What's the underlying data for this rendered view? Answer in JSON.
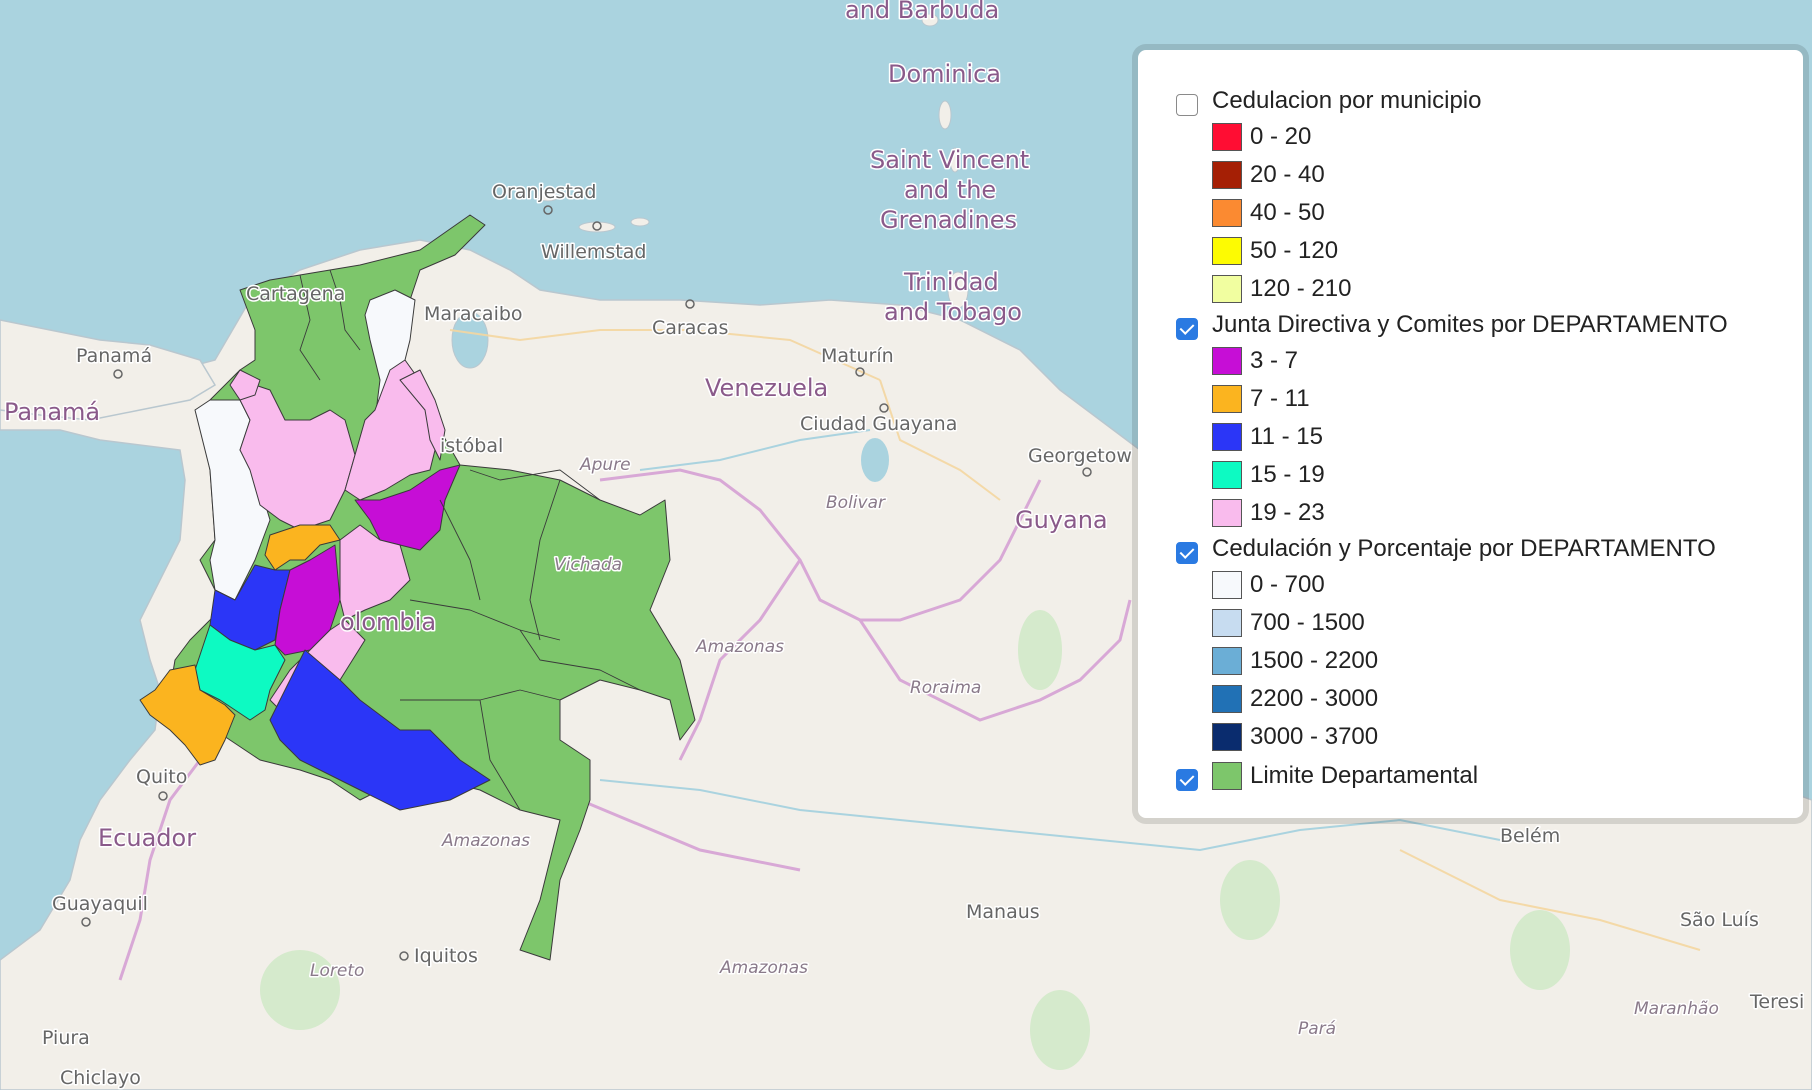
{
  "map": {
    "labels": {
      "antigua": "and Barbuda",
      "dominica": "Dominica",
      "saint_vincent": [
        "Saint Vincent",
        "and the",
        "Grenadines"
      ],
      "trinidad": [
        "Trinidad",
        "and Tobago"
      ],
      "oranjestad": "Oranjestad",
      "willemstad": "Willemstad",
      "cartagena": "Cartagena",
      "maracaibo": "Maracaibo",
      "caracas": "Caracas",
      "maturin": "Maturín",
      "venezuela": "Venezuela",
      "ciudad_guayana": "Ciudad Guayana",
      "san_cristobal": "istóbal",
      "apure": "Apure",
      "bolivar": "Bolivar",
      "guyana": "Guyana",
      "georgetown": "Georgetow",
      "panama_city": "Panamá",
      "panama_country": "Panamá",
      "vichada": "Vichada",
      "colombia": "olombia",
      "amazonas_ve": "Amazonas",
      "roraima": "Roraima",
      "quito": "Quito",
      "ecuador": "Ecuador",
      "guayaquil": "Guayaquil",
      "amazonas_co": "Amazonas",
      "belem": "Belém",
      "manaus": "Manaus",
      "sao_luis": "São Luís",
      "loreto": "Loreto",
      "iquitos": "Iquitos",
      "amazonas_br": "Amazonas",
      "maranhao": "Maranhão",
      "teresina": "Teresi",
      "piura": "Piura",
      "para": "Pará",
      "chiclayo": "Chiclayo"
    },
    "colors": {
      "sea": "#aad3df",
      "land": "#f2efe9",
      "limite": "#7dc66b",
      "white_dept": "#f7f9fc",
      "pink": "#f9bbed",
      "magenta": "#c60ed6",
      "orange": "#fbb41f",
      "blue": "#2b36f7",
      "teal": "#0dfac2"
    }
  },
  "legend": {
    "groups": [
      {
        "title": "Cedulacion por municipio",
        "checked": false,
        "items": [
          {
            "label": "0 - 20",
            "color": "#ff0d33"
          },
          {
            "label": "20 - 40",
            "color": "#a51f05"
          },
          {
            "label": "40 - 50",
            "color": "#fb8a31"
          },
          {
            "label": "50 - 120",
            "color": "#fdfb02"
          },
          {
            "label": "120 - 210",
            "color": "#f1fea0"
          }
        ]
      },
      {
        "title": "Junta Directiva y Comites por DEPARTAMENTO",
        "checked": true,
        "items": [
          {
            "label": "3 - 7",
            "color": "#c60ed6"
          },
          {
            "label": "7 - 11",
            "color": "#fbb41f"
          },
          {
            "label": "11 - 15",
            "color": "#2b36f7"
          },
          {
            "label": "15 - 19",
            "color": "#0dfac2"
          },
          {
            "label": "19 - 23",
            "color": "#f9bbed"
          }
        ]
      },
      {
        "title": "Cedulación y Porcentaje por DEPARTAMENTO",
        "checked": true,
        "items": [
          {
            "label": "0 - 700",
            "color": "#f7f9fc"
          },
          {
            "label": "700 - 1500",
            "color": "#c7dcf0"
          },
          {
            "label": "1500 - 2200",
            "color": "#6baed6"
          },
          {
            "label": "2200 - 3000",
            "color": "#2171b5"
          },
          {
            "label": "3000 - 3700",
            "color": "#0a2c6e"
          }
        ]
      },
      {
        "title": "Limite Departamental",
        "checked": true,
        "swatch": "#7dc66b",
        "items": []
      }
    ]
  }
}
